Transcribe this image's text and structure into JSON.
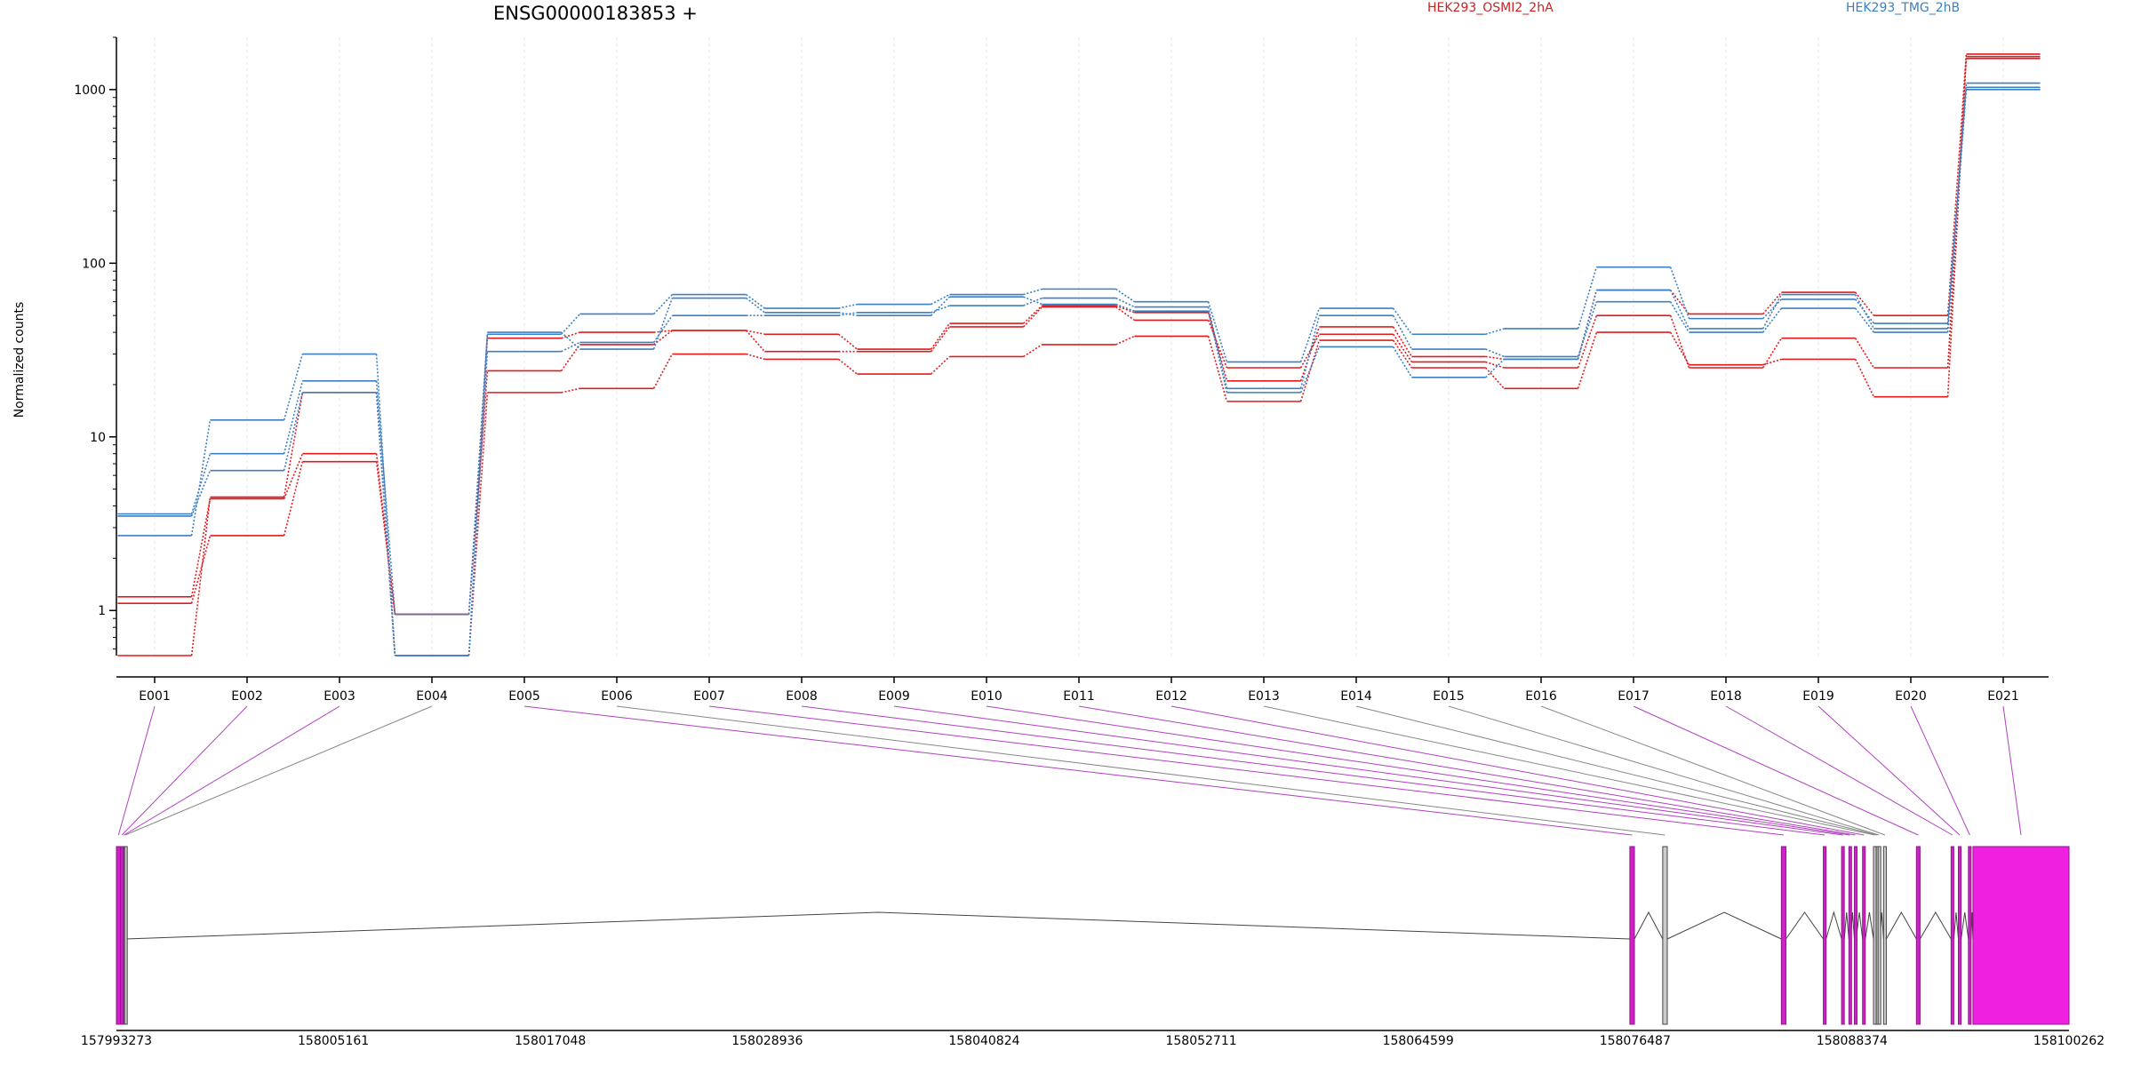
{
  "chart_data": {
    "type": "line",
    "title": "ENSG00000183853 +",
    "ylabel": "Normalized counts",
    "xlabel": "",
    "yscale": "log",
    "ylim": [
      0.55,
      2000
    ],
    "yticks": [
      1,
      10,
      100,
      1000
    ],
    "ytick_labels": [
      "1",
      "10",
      "100",
      "1000"
    ],
    "grid": "vertical",
    "legend_position": "top",
    "categories": [
      "E001",
      "E002",
      "E003",
      "E004",
      "E005",
      "E006",
      "E007",
      "E008",
      "E009",
      "E010",
      "E011",
      "E012",
      "E013",
      "E014",
      "E015",
      "E016",
      "E017",
      "E018",
      "E019",
      "E020",
      "E021"
    ],
    "legend": [
      {
        "label": "HEK293_OSMI2_2hA",
        "color": "#cc2222"
      },
      {
        "label": "HEK293_TMG_2hB",
        "color": "#3a7fc1"
      }
    ],
    "series": [
      {
        "condition": "OSMI2",
        "color": "#e31a1c",
        "values": [
          1.2,
          4.4,
          8.0,
          0.95,
          37,
          40,
          41,
          39,
          32,
          45,
          57,
          52,
          21,
          43,
          29,
          28,
          70,
          51,
          68,
          50,
          1600
        ]
      },
      {
        "condition": "OSMI2",
        "color": "#e31a1c",
        "values": [
          1.1,
          2.7,
          7.2,
          0.95,
          24,
          34,
          41,
          31,
          31,
          43,
          56,
          47,
          25,
          39,
          27,
          25,
          50,
          25,
          37,
          25,
          1510
        ]
      },
      {
        "condition": "OSMI2",
        "color": "#e31a1c",
        "values": [
          0.55,
          4.5,
          18,
          0.55,
          18,
          19,
          30,
          28,
          23,
          29,
          34,
          38,
          16,
          36,
          25,
          19,
          40,
          26,
          28,
          17,
          1550
        ]
      },
      {
        "condition": "TMG",
        "color": "#3b7fc4",
        "values": [
          3.6,
          8.0,
          21,
          0.95,
          39,
          51,
          66,
          55,
          58,
          66,
          71,
          60,
          27,
          55,
          39,
          42,
          95,
          48,
          62,
          45,
          1090
        ]
      },
      {
        "condition": "TMG",
        "color": "#3b7fc4",
        "values": [
          2.7,
          12.5,
          30,
          0.55,
          31,
          35,
          50,
          50,
          52,
          57,
          63,
          56,
          19,
          50,
          32,
          29,
          60,
          40,
          55,
          40,
          1030
        ]
      },
      {
        "condition": "TMG",
        "color": "#3b7fc4",
        "values": [
          3.5,
          6.4,
          18,
          0.55,
          40,
          32,
          63,
          52,
          50,
          64,
          58,
          53,
          18,
          33,
          22,
          28,
          70,
          42,
          66,
          42,
          1000
        ]
      }
    ],
    "gene_model": {
      "coordinate_ticks": [
        "157993273",
        "158005161",
        "158017048",
        "158028936",
        "158040824",
        "158052711",
        "158064599",
        "158076487",
        "158088374",
        "158100262"
      ],
      "coord_start": 157993273,
      "coord_end": 158100262,
      "exons": [
        {
          "id": "E001",
          "start": 157993273,
          "end": 157993500,
          "tested": true
        },
        {
          "id": "E002",
          "start": 157993500,
          "end": 157993650,
          "tested": true
        },
        {
          "id": "E003",
          "start": 157993650,
          "end": 157993720,
          "tested": true
        },
        {
          "id": "E004",
          "start": 157993720,
          "end": 157993780,
          "tested": false
        },
        {
          "id": "E005",
          "start": 158076200,
          "end": 158076450,
          "tested": true
        },
        {
          "id": "E006",
          "start": 158078000,
          "end": 158078250,
          "tested": false
        },
        {
          "id": "E007",
          "start": 158084500,
          "end": 158084750,
          "tested": true
        },
        {
          "id": "E008",
          "start": 158086800,
          "end": 158086950,
          "tested": true
        },
        {
          "id": "E009",
          "start": 158087800,
          "end": 158087950,
          "tested": true
        },
        {
          "id": "E010",
          "start": 158088200,
          "end": 158088300,
          "tested": true
        },
        {
          "id": "E011",
          "start": 158088500,
          "end": 158088600,
          "tested": true
        },
        {
          "id": "E012",
          "start": 158088950,
          "end": 158089100,
          "tested": true
        },
        {
          "id": "E013",
          "start": 158089550,
          "end": 158089700,
          "tested": false
        },
        {
          "id": "E014",
          "start": 158089700,
          "end": 158089800,
          "tested": false
        },
        {
          "id": "E015",
          "start": 158089800,
          "end": 158089900,
          "tested": false
        },
        {
          "id": "E016",
          "start": 158090100,
          "end": 158090250,
          "tested": false
        },
        {
          "id": "E017",
          "start": 158091900,
          "end": 158092100,
          "tested": true
        },
        {
          "id": "E018",
          "start": 158093800,
          "end": 158093950,
          "tested": true
        },
        {
          "id": "E019",
          "start": 158094200,
          "end": 158094350,
          "tested": true
        },
        {
          "id": "E020",
          "start": 158094750,
          "end": 158094900,
          "tested": true
        },
        {
          "id": "E021",
          "start": 158095000,
          "end": 158100262,
          "tested": true
        }
      ]
    }
  }
}
